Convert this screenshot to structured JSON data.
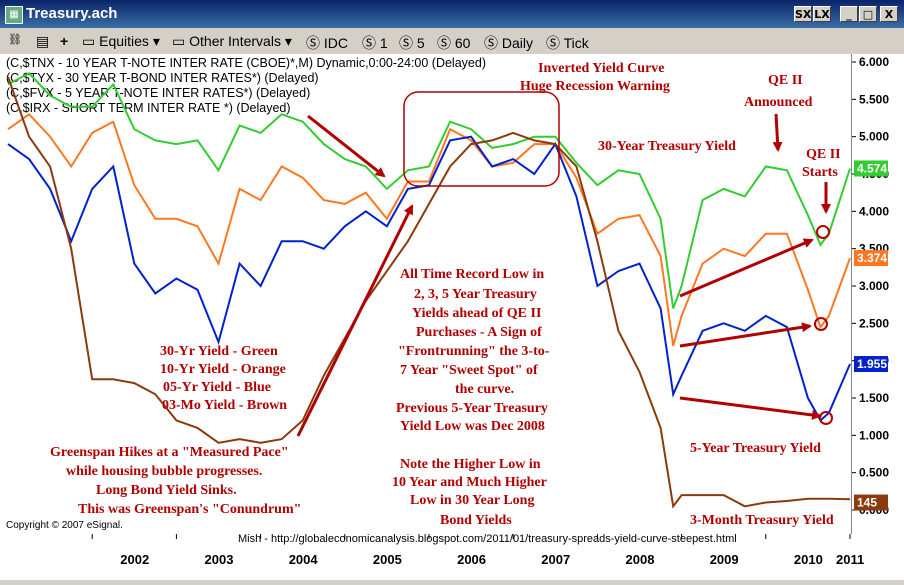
{
  "window": {
    "title": "Treasury.ach",
    "buttons": [
      "SX",
      "LX",
      "_",
      "□",
      "X"
    ]
  },
  "toolbar": {
    "items": [
      "Equities",
      "Other Intervals",
      "IDC",
      "1",
      "5",
      "60",
      "Daily",
      "Tick"
    ]
  },
  "chart_data": {
    "type": "line",
    "symbols": [
      "(C,$TNX - 10 YEAR T-NOTE INTER RATE (CBOE)*,M) Dynamic,0:00-24:00 (Delayed)",
      "(C,$TYX - 30 YEAR T-BOND INTER RATES*)  (Delayed)",
      "(C,$FVX - 5 YEAR T-NOTE INTER RATES*)  (Delayed)",
      "(C,$IRX - SHORT TERM INTER RATE *)  (Delayed)"
    ],
    "x_ticks": [
      "2002",
      "2003",
      "2004",
      "2005",
      "2006",
      "2007",
      "2008",
      "2009",
      "2010",
      "2011"
    ],
    "ylim": [
      0,
      6
    ],
    "y_ticks": [
      "6.000",
      "5.500",
      "5.000",
      "4.500",
      "4.000",
      "3.500",
      "3.000",
      "2.500",
      "2.000",
      "1.500",
      "1.000",
      "0.500",
      "0.000"
    ],
    "series": [
      {
        "name": "30-Yr Yield",
        "color": "#33cc33",
        "last": "4.574",
        "x": [
          2001.0,
          2001.25,
          2001.5,
          2001.75,
          2002.0,
          2002.25,
          2002.5,
          2002.75,
          2003.0,
          2003.25,
          2003.5,
          2003.75,
          2004.0,
          2004.25,
          2004.5,
          2004.75,
          2005.0,
          2005.25,
          2005.5,
          2005.75,
          2006.0,
          2006.25,
          2006.5,
          2006.75,
          2007.0,
          2007.25,
          2007.5,
          2007.75,
          2008.0,
          2008.25,
          2008.5,
          2008.75,
          2008.9,
          2009.0,
          2009.25,
          2009.5,
          2009.75,
          2010.0,
          2010.25,
          2010.5,
          2010.65,
          2010.75,
          2011.0
        ],
        "y": [
          5.7,
          5.85,
          5.55,
          5.4,
          5.4,
          5.7,
          5.1,
          4.95,
          4.9,
          4.95,
          4.55,
          5.15,
          5.05,
          5.3,
          5.2,
          4.9,
          4.7,
          4.6,
          4.3,
          4.55,
          4.6,
          5.2,
          5.1,
          4.85,
          4.9,
          5.0,
          5.0,
          4.65,
          4.35,
          4.55,
          4.5,
          3.9,
          2.7,
          3.0,
          4.15,
          4.3,
          4.2,
          4.6,
          4.55,
          3.95,
          3.55,
          3.7,
          4.574
        ]
      },
      {
        "name": "10-Yr Yield",
        "color": "#ff7722",
        "last": "3.374",
        "x": [
          2001.0,
          2001.25,
          2001.5,
          2001.75,
          2002.0,
          2002.25,
          2002.5,
          2002.75,
          2003.0,
          2003.25,
          2003.5,
          2003.75,
          2004.0,
          2004.25,
          2004.5,
          2004.75,
          2005.0,
          2005.25,
          2005.5,
          2005.75,
          2006.0,
          2006.25,
          2006.5,
          2006.75,
          2007.0,
          2007.25,
          2007.5,
          2007.75,
          2008.0,
          2008.25,
          2008.5,
          2008.75,
          2008.9,
          2009.0,
          2009.25,
          2009.5,
          2009.75,
          2010.0,
          2010.25,
          2010.5,
          2010.65,
          2010.75,
          2011.0
        ],
        "y": [
          5.1,
          5.3,
          5.0,
          4.6,
          5.05,
          5.2,
          4.35,
          3.9,
          3.9,
          3.8,
          3.3,
          4.3,
          4.15,
          4.6,
          4.45,
          4.15,
          4.1,
          4.25,
          3.9,
          4.4,
          4.4,
          5.1,
          4.95,
          4.6,
          4.65,
          4.9,
          4.9,
          4.45,
          3.7,
          3.9,
          3.95,
          3.4,
          2.2,
          2.6,
          3.3,
          3.5,
          3.4,
          3.7,
          3.7,
          2.95,
          2.45,
          2.6,
          3.374
        ]
      },
      {
        "name": "05-Yr Yield",
        "color": "#0022cc",
        "last": "1.955",
        "x": [
          2001.0,
          2001.25,
          2001.5,
          2001.75,
          2002.0,
          2002.25,
          2002.5,
          2002.75,
          2003.0,
          2003.25,
          2003.5,
          2003.75,
          2004.0,
          2004.25,
          2004.5,
          2004.75,
          2005.0,
          2005.25,
          2005.5,
          2005.75,
          2006.0,
          2006.25,
          2006.5,
          2006.75,
          2007.0,
          2007.25,
          2007.5,
          2007.75,
          2008.0,
          2008.25,
          2008.5,
          2008.75,
          2008.9,
          2009.0,
          2009.25,
          2009.5,
          2009.75,
          2010.0,
          2010.25,
          2010.5,
          2010.65,
          2010.75,
          2011.0
        ],
        "y": [
          4.9,
          4.7,
          4.3,
          3.6,
          4.3,
          4.6,
          3.3,
          2.9,
          3.1,
          2.95,
          2.25,
          3.3,
          3.0,
          3.6,
          3.6,
          3.5,
          3.8,
          4.0,
          3.8,
          4.3,
          4.35,
          4.95,
          5.0,
          4.6,
          4.7,
          4.5,
          4.9,
          4.2,
          3.0,
          3.2,
          3.3,
          2.7,
          1.55,
          1.8,
          2.4,
          2.5,
          2.4,
          2.6,
          2.45,
          1.5,
          1.2,
          1.3,
          1.955
        ]
      },
      {
        "name": "03-Mo Yield",
        "color": "#8b3a0e",
        "last": "145",
        "x": [
          2001.0,
          2001.25,
          2001.5,
          2001.75,
          2002.0,
          2002.25,
          2002.5,
          2002.75,
          2003.0,
          2003.25,
          2003.5,
          2003.75,
          2004.0,
          2004.25,
          2004.5,
          2004.75,
          2005.0,
          2005.25,
          2005.5,
          2005.75,
          2006.0,
          2006.25,
          2006.5,
          2006.75,
          2007.0,
          2007.25,
          2007.5,
          2007.75,
          2008.0,
          2008.25,
          2008.5,
          2008.75,
          2008.9,
          2009.0,
          2009.25,
          2009.5,
          2009.75,
          2010.0,
          2010.25,
          2010.5,
          2010.65,
          2010.75,
          2011.0
        ],
        "y": [
          5.8,
          5.0,
          4.6,
          3.5,
          1.75,
          1.75,
          1.7,
          1.55,
          1.2,
          1.1,
          0.9,
          0.95,
          0.9,
          0.95,
          1.2,
          1.8,
          2.3,
          2.8,
          3.2,
          3.6,
          4.1,
          4.6,
          4.9,
          4.95,
          5.05,
          4.95,
          4.9,
          4.6,
          3.6,
          2.4,
          1.85,
          1.1,
          0.05,
          0.2,
          0.2,
          0.2,
          0.05,
          0.1,
          0.12,
          0.15,
          0.15,
          0.15,
          0.145
        ]
      }
    ],
    "annotations": [
      {
        "text": "Inverted Yield Curve",
        "color": "#b00000"
      },
      {
        "text": "Huge Recession Warning",
        "color": "#b00000"
      },
      {
        "text": "QE II",
        "color": "#b00000"
      },
      {
        "text": "Announced",
        "color": "#b00000"
      },
      {
        "text": "QE II",
        "color": "#b00000"
      },
      {
        "text": "Starts",
        "color": "#b00000"
      },
      {
        "text": "30-Year Treasury Yield",
        "color": "#b00000"
      },
      {
        "text": "All Time Record Low in",
        "color": "#b00000"
      },
      {
        "text": "2, 3, 5 Year Treasury",
        "color": "#b00000"
      },
      {
        "text": "Yields ahead of QE II",
        "color": "#b00000"
      },
      {
        "text": "Purchases - A Sign of",
        "color": "#b00000"
      },
      {
        "text": "\"Frontrunning\" the 3-to-",
        "color": "#b00000"
      },
      {
        "text": "7 Year \"Sweet Spot\" of",
        "color": "#b00000"
      },
      {
        "text": "the curve.",
        "color": "#b00000"
      },
      {
        "text": "Previous 5-Year Treasury",
        "color": "#b00000"
      },
      {
        "text": "Yield Low was Dec 2008",
        "color": "#b00000"
      },
      {
        "text": "Note the Higher Low in",
        "color": "#b00000"
      },
      {
        "text": "10 Year and Much Higher",
        "color": "#b00000"
      },
      {
        "text": "Low in 30 Year Long",
        "color": "#b00000"
      },
      {
        "text": "Bond Yields",
        "color": "#b00000"
      },
      {
        "text": "30-Yr Yield - Green",
        "color": "#b00000"
      },
      {
        "text": "10-Yr Yield - Orange",
        "color": "#b00000"
      },
      {
        "text": "05-Yr Yield - Blue",
        "color": "#b00000"
      },
      {
        "text": "03-Mo Yield - Brown",
        "color": "#b00000"
      },
      {
        "text": "Greenspan Hikes at a \"Measured Pace\"",
        "color": "#b00000"
      },
      {
        "text": "while housing bubble progresses.",
        "color": "#b00000"
      },
      {
        "text": "Long Bond Yield Sinks.",
        "color": "#b00000"
      },
      {
        "text": "This was Greenspan's \"Conundrum\"",
        "color": "#b00000"
      },
      {
        "text": "5-Year Treasury Yield",
        "color": "#b00000"
      },
      {
        "text": "3-Month Treasury Yield",
        "color": "#b00000"
      }
    ],
    "copyright": "Copyright © 2007 eSignal.",
    "source": "Mish - http://globaleconomicanalysis.blogspot.com/2011/01/treasury-spreads-yield-curve-steepest.html",
    "grid": false
  }
}
